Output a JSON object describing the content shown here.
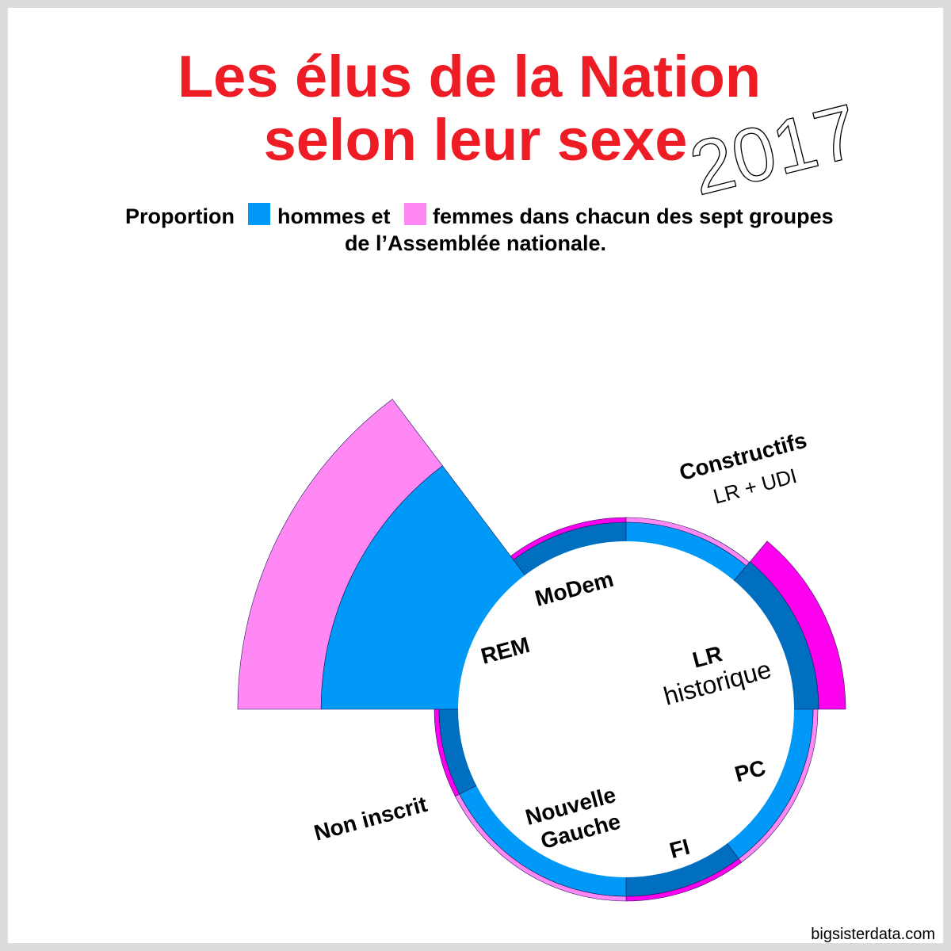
{
  "title_line1": "Les élus de la Nation",
  "title_line2": "selon leur sexe",
  "year": "2017",
  "subtitle_proportion": "Proportion",
  "subtitle_men": "hommes et",
  "subtitle_women": "femmes dans chacun des sept groupes",
  "subtitle_line2": "de l’Assemblée nationale.",
  "credit": "bigsisterdata.com",
  "colors": {
    "title": "#ee1c25",
    "men_legend": "#0099f7",
    "women_legend": "#ff88f5",
    "men_dark": "#006fbf",
    "women_bright": "#ff00ef"
  },
  "chart_data": {
    "type": "polar-area",
    "groups": [
      {
        "label": "REM",
        "sublabel": "",
        "men": 193,
        "women": 120
      },
      {
        "label": "MoDem",
        "sublabel": "",
        "men": 32,
        "women": 14
      },
      {
        "label": "Constructifs",
        "sublabel": "LR + UDI",
        "men": 25,
        "women": 7
      },
      {
        "label": "LR",
        "sublabel": "historique",
        "men": 77,
        "women": 23
      },
      {
        "label": "PC",
        "sublabel": "",
        "men": 13,
        "women": 3
      },
      {
        "label": "FI",
        "sublabel": "",
        "men": 8,
        "women": 9
      },
      {
        "label": "Nouvelle Gauche",
        "sublabel": "",
        "men": 25,
        "women": 6
      },
      {
        "label": "Non inscrit",
        "sublabel": "",
        "men": 12,
        "women": 5
      }
    ]
  }
}
